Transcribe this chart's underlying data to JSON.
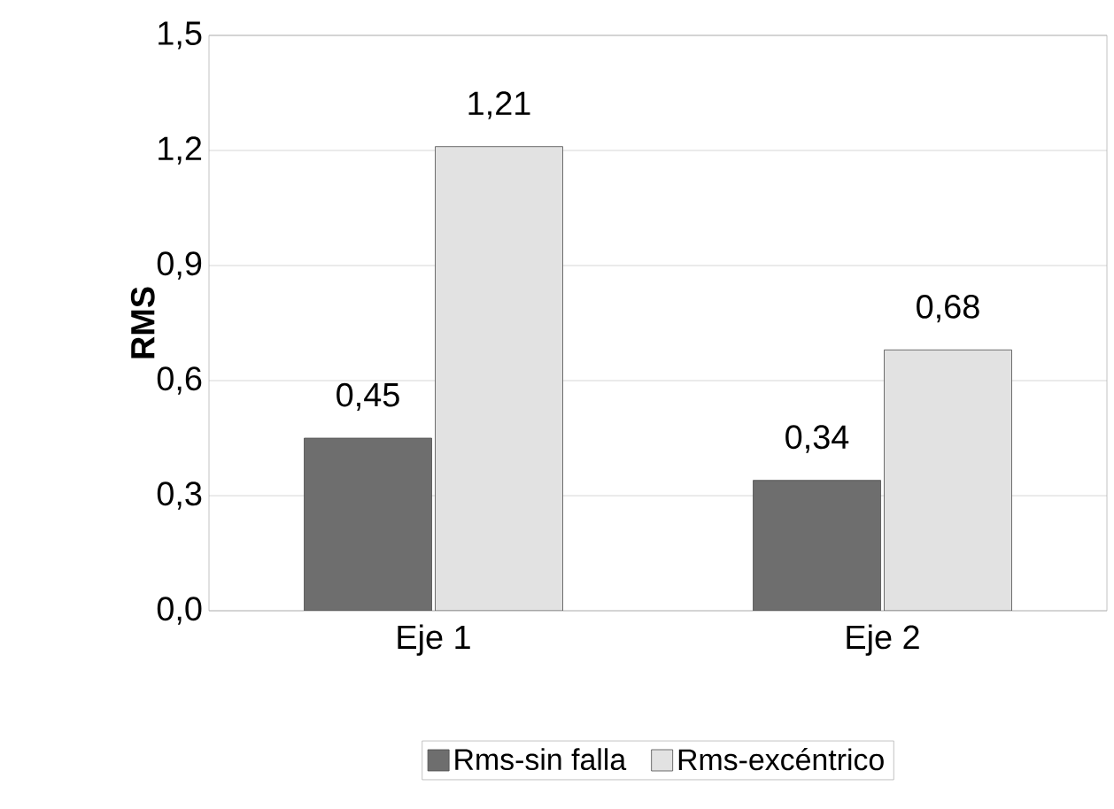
{
  "chart_data": {
    "type": "bar",
    "ylabel": "RMS",
    "categories": [
      "Eje 1",
      "Eje 2"
    ],
    "series": [
      {
        "name": "Rms-sin falla",
        "color": "#6e6e6e",
        "values": [
          0.45,
          0.34
        ],
        "value_labels": [
          "0,45",
          "0,34"
        ]
      },
      {
        "name": "Rms-excéntrico",
        "color": "#e2e2e2",
        "values": [
          1.21,
          0.68
        ],
        "value_labels": [
          "1,21",
          "0,68"
        ]
      }
    ],
    "ylim": [
      0,
      1.5
    ],
    "yticks": [
      {
        "value": 0,
        "label": "0,0"
      },
      {
        "value": 0.3,
        "label": "0,3"
      },
      {
        "value": 0.6,
        "label": "0,6"
      },
      {
        "value": 0.9,
        "label": "0,9"
      },
      {
        "value": 1.2,
        "label": "1,2"
      },
      {
        "value": 1.5,
        "label": "1,5"
      }
    ],
    "grid": "y",
    "legend": "bottom"
  }
}
